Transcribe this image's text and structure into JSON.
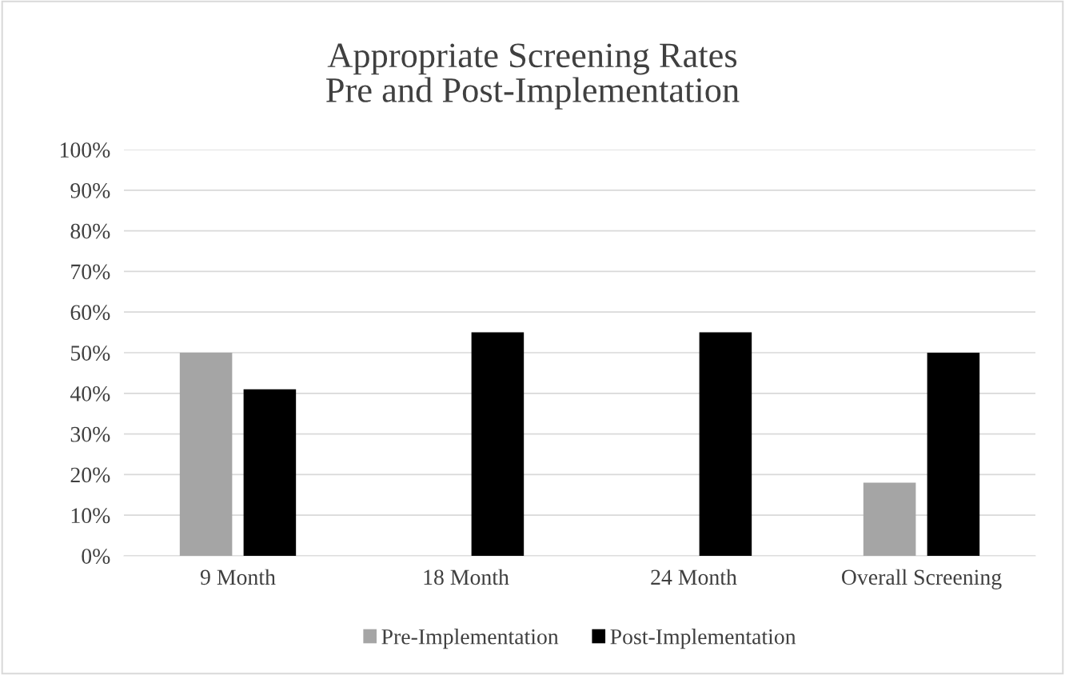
{
  "chart_data": {
    "type": "bar",
    "title": "Appropriate Screening Rates\nPre and Post-Implementation",
    "categories": [
      "9 Month",
      "18 Month",
      "24 Month",
      "Overall Screening"
    ],
    "series": [
      {
        "name": "Pre-Implementation",
        "color": "#a5a5a5",
        "values": [
          50,
          null,
          null,
          18
        ]
      },
      {
        "name": "Post-Implementation",
        "color": "#000000",
        "values": [
          41,
          55,
          55,
          50
        ]
      }
    ],
    "ylim": [
      0,
      100
    ],
    "yticks": [
      {
        "value": 0,
        "label": "0%"
      },
      {
        "value": 10,
        "label": "10%"
      },
      {
        "value": 20,
        "label": "20%"
      },
      {
        "value": 30,
        "label": "30%"
      },
      {
        "value": 40,
        "label": "40%"
      },
      {
        "value": 50,
        "label": "50%"
      },
      {
        "value": 60,
        "label": "60%"
      },
      {
        "value": 70,
        "label": "70%"
      },
      {
        "value": 80,
        "label": "80%"
      },
      {
        "value": 90,
        "label": "90%"
      },
      {
        "value": 100,
        "label": "100%"
      }
    ],
    "grid": "y",
    "legend": "bottom"
  }
}
